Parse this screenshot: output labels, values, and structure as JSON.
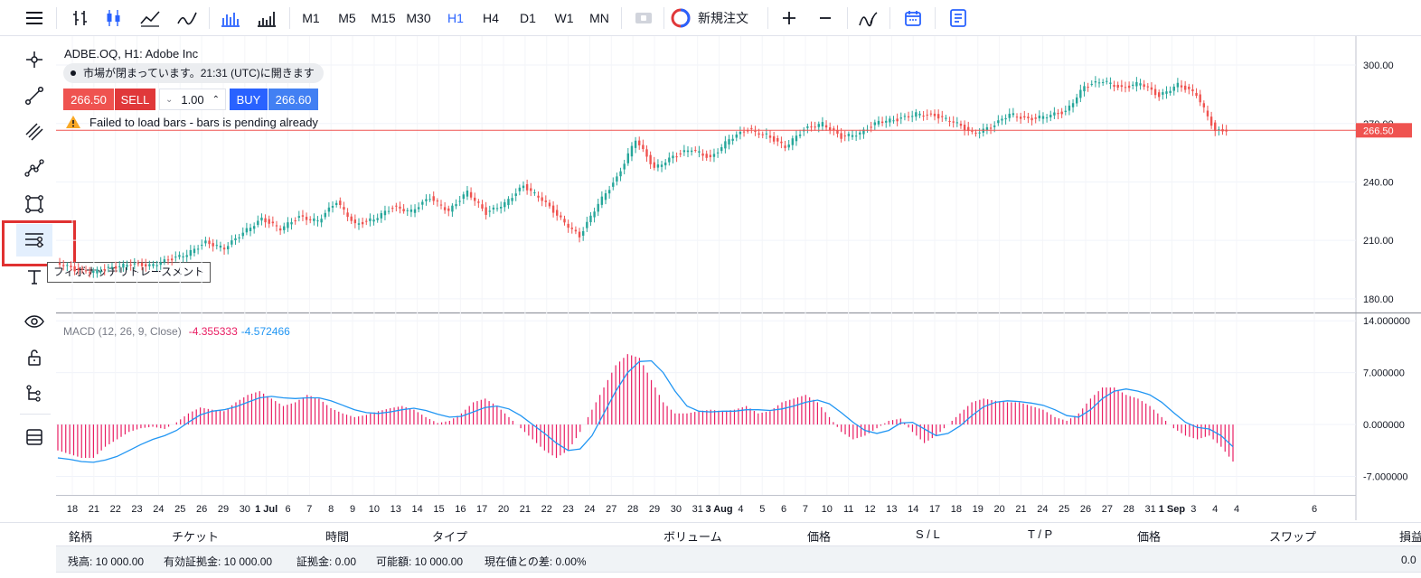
{
  "toolbar": {
    "timeframes": [
      "M1",
      "M5",
      "M15",
      "M30",
      "H1",
      "H4",
      "D1",
      "W1",
      "MN"
    ],
    "active_timeframe": "H1",
    "new_order_label": "新規注文"
  },
  "left_tools": {
    "tooltip": "フィボナッチリトレースメント"
  },
  "legend": {
    "symbol_title": "ADBE.OQ, H1: Adobe Inc",
    "market_status": "市場が閉まっています。21:31 (UTC)に開きます",
    "sell_price": "266.50",
    "sell_label": "SELL",
    "quantity": "1.00",
    "buy_label": "BUY",
    "buy_price": "266.60",
    "warning": "Failed to load bars - bars is pending already"
  },
  "macd_legend": {
    "name": "MACD (12, 26, 9, Close)",
    "value1": "-4.355333",
    "value2": "-4.572466"
  },
  "chart_data": [
    {
      "type": "candlestick",
      "title": "ADBE.OQ, H1: Adobe Inc",
      "ylim": [
        173,
        313
      ],
      "y_ticks": [
        "300.00",
        "270.00",
        "240.00",
        "210.00",
        "180.00"
      ],
      "y_tick_values": [
        300,
        270,
        240,
        210,
        180
      ],
      "current_price": 266.5,
      "current_price_label": "266.50",
      "x_labels": [
        "18",
        "21",
        "22",
        "23",
        "24",
        "25",
        "26",
        "29",
        "30",
        "1 Jul",
        "6",
        "7",
        "8",
        "9",
        "10",
        "13",
        "14",
        "15",
        "16",
        "17",
        "20",
        "21",
        "22",
        "23",
        "24",
        "27",
        "28",
        "29",
        "30",
        "31",
        "3 Aug",
        "4",
        "5",
        "6",
        "7",
        "10",
        "11",
        "12",
        "13",
        "14",
        "17",
        "18",
        "19",
        "20",
        "21",
        "24",
        "25",
        "26",
        "27",
        "28",
        "31",
        "1 Sep",
        "3",
        "4",
        "4",
        "6"
      ],
      "series": [
        {
          "values": [
            199,
            195,
            194,
            196,
            198,
            197,
            200,
            203,
            209,
            206,
            214,
            221,
            216,
            222,
            220,
            230,
            218,
            221,
            227,
            225,
            232,
            225,
            235,
            224,
            229,
            238,
            231,
            221,
            212,
            229,
            242,
            262,
            247,
            253,
            257,
            252,
            262,
            267,
            264,
            258,
            267,
            270,
            263,
            265,
            271,
            272,
            275,
            274,
            271,
            265,
            268,
            275,
            272,
            274,
            276,
            289,
            292,
            288,
            291,
            284,
            290,
            285,
            266,
            267
          ]
        }
      ]
    },
    {
      "type": "bar+line",
      "title": "MACD (12, 26, 9, Close)",
      "ylim": [
        -9.5,
        15
      ],
      "y_ticks": [
        "14.000000",
        "7.000000",
        "0.000000",
        "-7.000000"
      ],
      "y_tick_values": [
        14,
        7,
        0,
        -7
      ],
      "histogram": [
        -3.5,
        -4.0,
        -4.5,
        -4.5,
        -3.0,
        -2.0,
        -1.0,
        -0.5,
        -0.3,
        -0.6,
        0.3,
        1.5,
        2.3,
        2.0,
        1.8,
        3.0,
        4.0,
        4.5,
        3.5,
        2.5,
        3.0,
        4.0,
        3.5,
        2.2,
        1.5,
        1.0,
        1.3,
        1.8,
        2.2,
        2.5,
        2.0,
        1.0,
        0.2,
        0.5,
        1.5,
        3.0,
        3.5,
        2.5,
        1.0,
        -0.5,
        -2.0,
        -3.5,
        -4.5,
        -3.5,
        -1.0,
        2.0,
        5.0,
        8.0,
        9.5,
        9.0,
        6.0,
        3.0,
        1.5,
        1.5,
        1.8,
        2.0,
        1.8,
        2.0,
        2.5,
        1.5,
        1.8,
        3.0,
        3.5,
        4.0,
        3.0,
        1.0,
        -1.0,
        -2.0,
        -1.5,
        -0.5,
        0.5,
        0.8,
        -1.0,
        -2.5,
        -1.5,
        0.0,
        1.5,
        3.0,
        3.5,
        3.2,
        3.0,
        3.0,
        2.5,
        2.0,
        1.0,
        0.5,
        1.5,
        3.5,
        5.0,
        5.0,
        4.0,
        3.5,
        2.5,
        1.0,
        -0.5,
        -1.5,
        -2.0,
        -1.5,
        -3.0,
        -5.0
      ],
      "signal": [
        -4.5,
        -4.7,
        -5.0,
        -5.1,
        -4.8,
        -4.3,
        -3.5,
        -2.7,
        -2.0,
        -1.5,
        -0.8,
        0.3,
        1.3,
        1.8,
        2.0,
        2.4,
        3.0,
        3.6,
        3.8,
        3.6,
        3.5,
        3.6,
        3.6,
        3.2,
        2.6,
        2.0,
        1.6,
        1.5,
        1.7,
        2.0,
        2.2,
        1.9,
        1.4,
        1.0,
        1.1,
        1.7,
        2.3,
        2.5,
        2.1,
        1.2,
        0.0,
        -1.2,
        -2.5,
        -3.5,
        -3.3,
        -1.5,
        1.5,
        4.5,
        7.0,
        8.5,
        8.6,
        7.0,
        4.5,
        2.5,
        1.8,
        1.7,
        1.8,
        1.8,
        2.0,
        2.0,
        1.9,
        2.1,
        2.5,
        3.0,
        3.3,
        2.8,
        1.6,
        0.3,
        -0.8,
        -1.2,
        -0.8,
        0.2,
        0.3,
        -0.6,
        -1.5,
        -1.2,
        -0.2,
        1.2,
        2.4,
        3.0,
        3.2,
        3.1,
        2.9,
        2.6,
        2.0,
        1.2,
        1.0,
        2.0,
        3.5,
        4.5,
        4.8,
        4.5,
        4.0,
        3.0,
        1.6,
        0.3,
        -0.4,
        -0.6,
        -1.5,
        -3.0
      ]
    }
  ],
  "orders_table": {
    "columns": [
      "銘柄",
      "チケット",
      "時間",
      "タイプ",
      "ボリューム",
      "価格",
      "S / L",
      "T / P",
      "価格",
      "スワップ",
      "損益"
    ]
  },
  "account": {
    "balance": "残高: 10 000.00",
    "equity": "有効証拠金: 10 000.00",
    "margin": "証拠金: 0.00",
    "available": "可能額: 10 000.00",
    "diff": "現在値との差: 0.00%",
    "right_value": "0.0"
  }
}
